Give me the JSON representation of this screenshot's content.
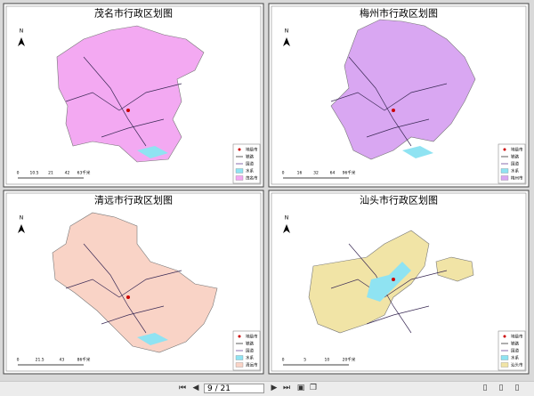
{
  "panels": [
    {
      "title": "茂名市行政区划图",
      "north": "N",
      "legend": [
        "地级市",
        "铁路",
        "国道",
        "水系",
        "茂名市"
      ],
      "scale": [
        "0",
        "10.5",
        "21",
        "42",
        "63千米"
      ]
    },
    {
      "title": "梅州市行政区划图",
      "north": "N",
      "legend": [
        "地级市",
        "铁路",
        "国道",
        "水系",
        "梅州市"
      ],
      "scale": [
        "0",
        "16",
        "32",
        "64",
        "96千米"
      ]
    },
    {
      "title": "清远市行政区划图",
      "north": "N",
      "legend": [
        "地级市",
        "铁路",
        "国道",
        "水系",
        "清远市"
      ],
      "scale": [
        "0",
        "21.5",
        "43",
        "86千米"
      ]
    },
    {
      "title": "汕头市行政区划图",
      "north": "N",
      "legend": [
        "地级市",
        "铁路",
        "国道",
        "水系",
        "汕头市"
      ],
      "scale": [
        "0",
        "5",
        "10",
        "20千米"
      ]
    }
  ],
  "toolbar": {
    "page": "9 / 21"
  }
}
